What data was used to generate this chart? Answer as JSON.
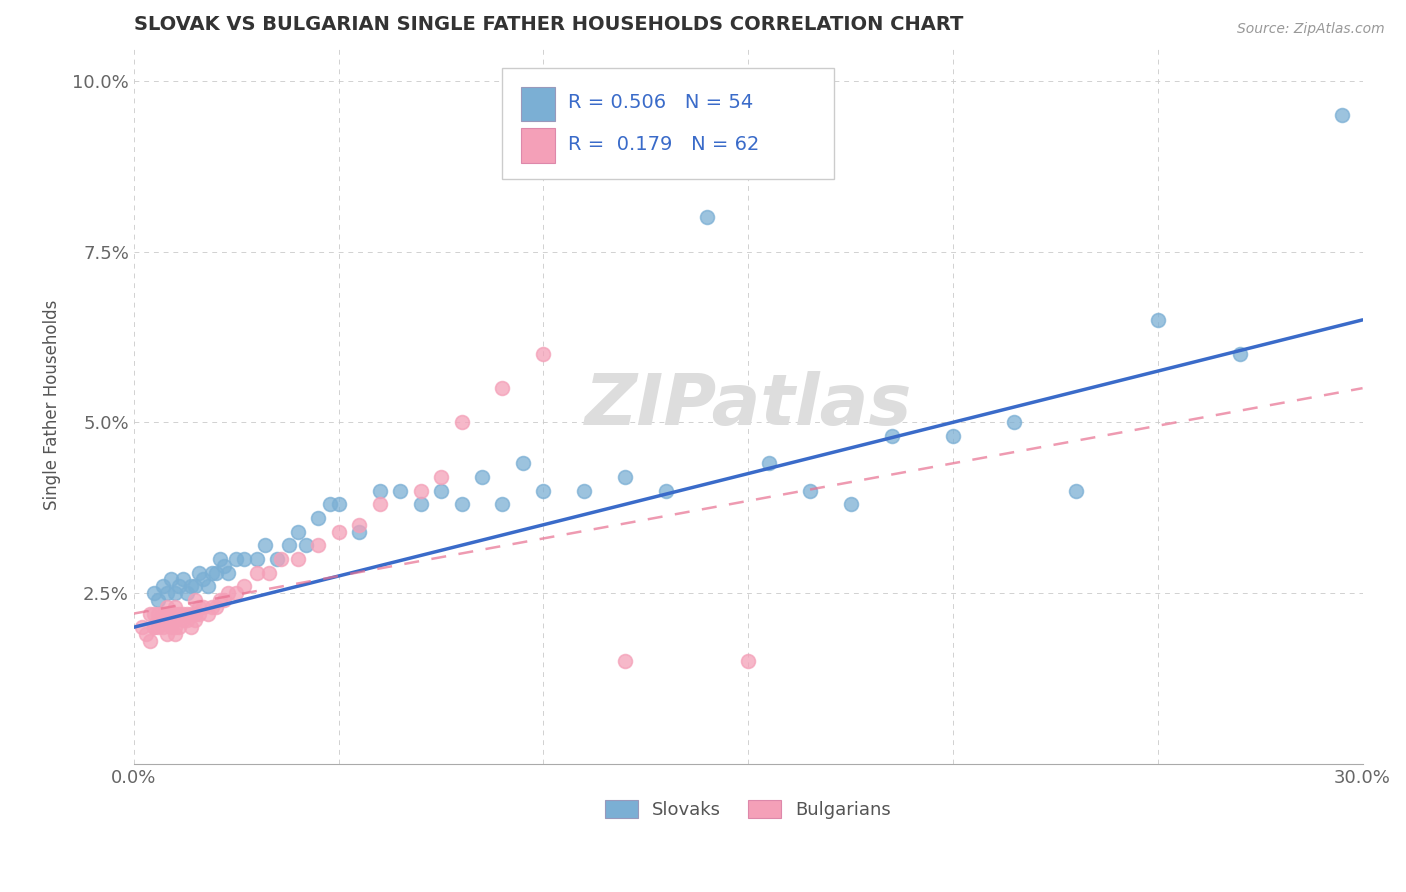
{
  "title": "SLOVAK VS BULGARIAN SINGLE FATHER HOUSEHOLDS CORRELATION CHART",
  "source": "Source: ZipAtlas.com",
  "ylabel": "Single Father Households",
  "xlim": [
    0.0,
    0.3
  ],
  "ylim": [
    0.0,
    0.105
  ],
  "xtick_vals": [
    0.0,
    0.05,
    0.1,
    0.15,
    0.2,
    0.25,
    0.3
  ],
  "xticklabels": [
    "0.0%",
    "",
    "",
    "",
    "",
    "",
    "30.0%"
  ],
  "ytick_vals": [
    0.0,
    0.025,
    0.05,
    0.075,
    0.1
  ],
  "yticklabels": [
    "",
    "2.5%",
    "5.0%",
    "7.5%",
    "10.0%"
  ],
  "slovak_R": "0.506",
  "slovak_N": "54",
  "bulgarian_R": "0.179",
  "bulgarian_N": "62",
  "slovak_color": "#7bafd4",
  "bulgarian_color": "#f4a0b8",
  "slovak_line_color": "#3a6bc9",
  "bulgarian_line_color": "#e87090",
  "watermark": "ZIPatlas",
  "legend_labels": [
    "Slovaks",
    "Bulgarians"
  ],
  "slovak_x": [
    0.005,
    0.006,
    0.007,
    0.008,
    0.009,
    0.01,
    0.011,
    0.012,
    0.013,
    0.014,
    0.015,
    0.016,
    0.017,
    0.018,
    0.019,
    0.02,
    0.021,
    0.022,
    0.023,
    0.025,
    0.027,
    0.03,
    0.032,
    0.035,
    0.038,
    0.04,
    0.042,
    0.045,
    0.048,
    0.05,
    0.055,
    0.06,
    0.065,
    0.07,
    0.075,
    0.08,
    0.085,
    0.09,
    0.095,
    0.1,
    0.11,
    0.12,
    0.13,
    0.14,
    0.155,
    0.165,
    0.175,
    0.185,
    0.2,
    0.215,
    0.23,
    0.25,
    0.27,
    0.295
  ],
  "slovak_y": [
    0.025,
    0.024,
    0.026,
    0.025,
    0.027,
    0.025,
    0.026,
    0.027,
    0.025,
    0.026,
    0.026,
    0.028,
    0.027,
    0.026,
    0.028,
    0.028,
    0.03,
    0.029,
    0.028,
    0.03,
    0.03,
    0.03,
    0.032,
    0.03,
    0.032,
    0.034,
    0.032,
    0.036,
    0.038,
    0.038,
    0.034,
    0.04,
    0.04,
    0.038,
    0.04,
    0.038,
    0.042,
    0.038,
    0.044,
    0.04,
    0.04,
    0.042,
    0.04,
    0.08,
    0.044,
    0.04,
    0.038,
    0.048,
    0.048,
    0.05,
    0.04,
    0.065,
    0.06,
    0.095
  ],
  "bulgarian_x": [
    0.002,
    0.003,
    0.004,
    0.004,
    0.005,
    0.005,
    0.005,
    0.006,
    0.006,
    0.006,
    0.007,
    0.007,
    0.007,
    0.008,
    0.008,
    0.008,
    0.008,
    0.009,
    0.009,
    0.009,
    0.01,
    0.01,
    0.01,
    0.01,
    0.01,
    0.011,
    0.011,
    0.012,
    0.012,
    0.013,
    0.013,
    0.014,
    0.014,
    0.015,
    0.015,
    0.015,
    0.016,
    0.016,
    0.017,
    0.018,
    0.019,
    0.02,
    0.021,
    0.022,
    0.023,
    0.025,
    0.027,
    0.03,
    0.033,
    0.036,
    0.04,
    0.045,
    0.05,
    0.055,
    0.06,
    0.07,
    0.075,
    0.08,
    0.09,
    0.1,
    0.12,
    0.15
  ],
  "bulgarian_y": [
    0.02,
    0.019,
    0.022,
    0.018,
    0.02,
    0.02,
    0.022,
    0.02,
    0.021,
    0.022,
    0.02,
    0.021,
    0.022,
    0.019,
    0.021,
    0.022,
    0.023,
    0.02,
    0.021,
    0.022,
    0.019,
    0.02,
    0.021,
    0.022,
    0.023,
    0.02,
    0.022,
    0.021,
    0.022,
    0.021,
    0.022,
    0.02,
    0.022,
    0.021,
    0.022,
    0.024,
    0.022,
    0.023,
    0.023,
    0.022,
    0.023,
    0.023,
    0.024,
    0.024,
    0.025,
    0.025,
    0.026,
    0.028,
    0.028,
    0.03,
    0.03,
    0.032,
    0.034,
    0.035,
    0.038,
    0.04,
    0.042,
    0.05,
    0.055,
    0.06,
    0.015,
    0.015
  ]
}
